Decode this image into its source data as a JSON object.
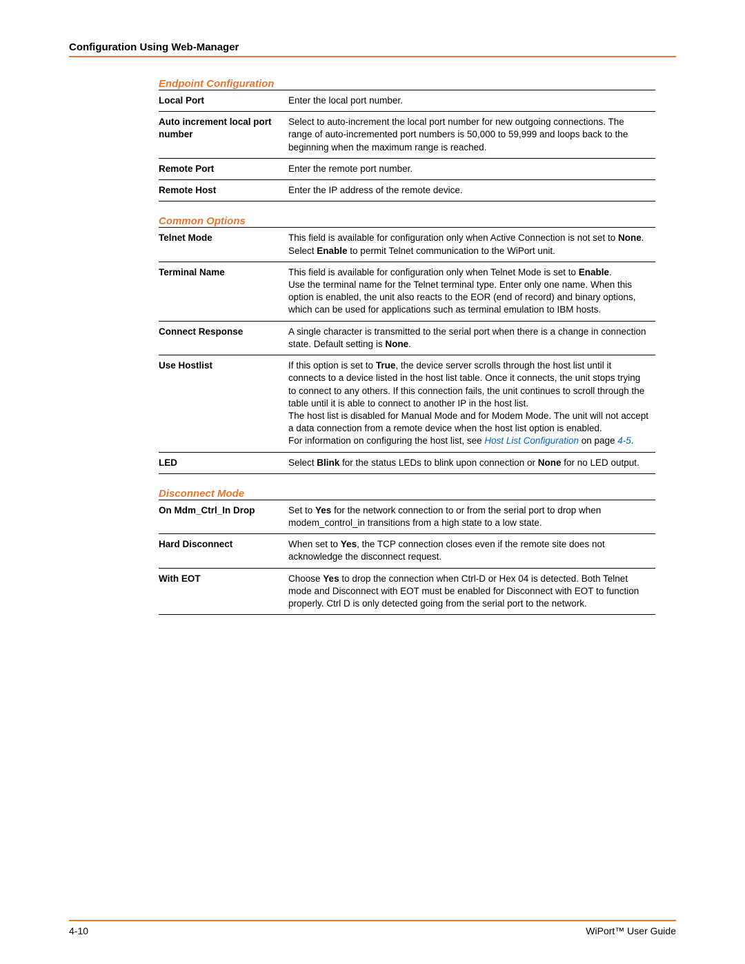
{
  "header_title": "Configuration Using Web-Manager",
  "sections": {
    "endpoint": {
      "heading": "Endpoint Configuration",
      "rows": {
        "local_port": {
          "label": "Local Port",
          "desc": "Enter the local port number."
        },
        "auto_inc": {
          "label": "Auto increment local port number",
          "desc": "Select to auto-increment the local port number for new outgoing connections.  The range of auto-incremented port numbers is 50,000 to 59,999 and loops back to the beginning when the maximum range is reached."
        },
        "remote_port": {
          "label": "Remote Port",
          "desc": "Enter the remote port number."
        },
        "remote_host": {
          "label": "Remote Host",
          "desc": "Enter the IP address of the remote device."
        }
      }
    },
    "common": {
      "heading": "Common Options",
      "rows": {
        "telnet_mode": {
          "label": "Telnet Mode"
        },
        "terminal_name": {
          "label": "Terminal Name"
        },
        "connect_response": {
          "label": "Connect Response"
        },
        "use_hostlist": {
          "label": "Use Hostlist"
        },
        "led": {
          "label": "LED"
        }
      }
    },
    "disconnect": {
      "heading": "Disconnect Mode",
      "rows": {
        "on_mdm": {
          "label": "On Mdm_Ctrl_In Drop"
        },
        "hard_disc": {
          "label": "Hard Disconnect"
        },
        "with_eot": {
          "label": "With EOT"
        }
      }
    }
  },
  "footer": {
    "page_num": "4-10",
    "doc_title": "WiPort™ User Guide"
  },
  "colors": {
    "accent": "#e8762d",
    "link": "#0066cc",
    "text": "#000000",
    "background": "#ffffff"
  }
}
